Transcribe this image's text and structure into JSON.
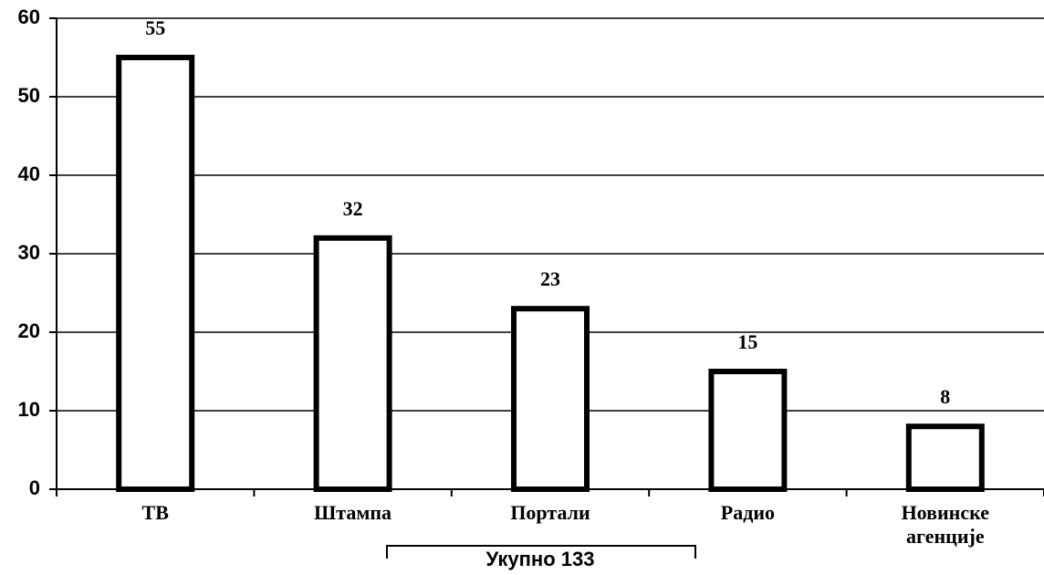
{
  "chart_data": {
    "type": "bar",
    "categories": [
      "ТВ",
      "Штампа",
      "Портали",
      "Радио",
      "Новинске агенције"
    ],
    "values": [
      55,
      32,
      23,
      15,
      8
    ],
    "color": "#ffffff",
    "edge_color": "#000000",
    "ylim": [
      0,
      60
    ],
    "yticks": [
      0,
      10,
      20,
      30,
      40,
      50,
      60
    ],
    "grid": true,
    "annotation": "Укупно 133"
  }
}
